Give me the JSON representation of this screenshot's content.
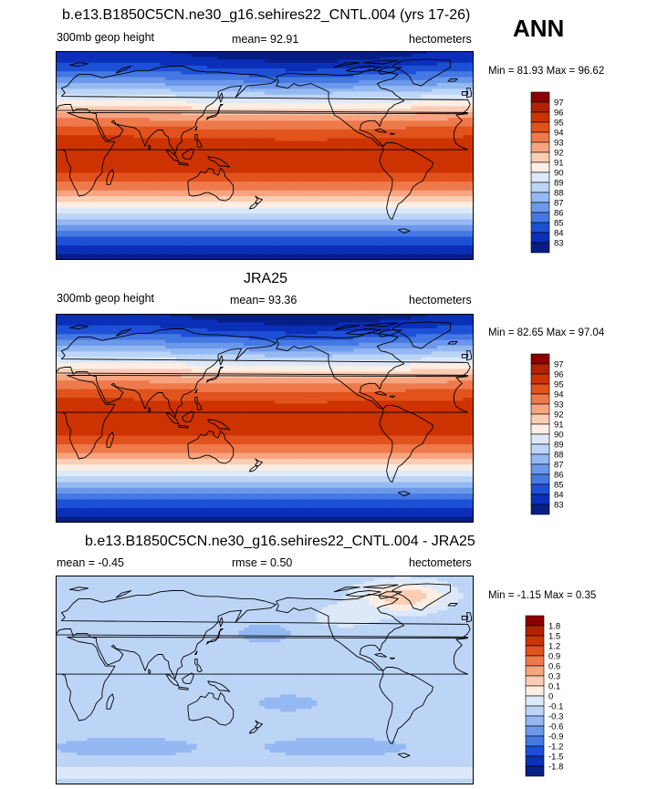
{
  "season": "ANN",
  "chart_data": [
    {
      "type": "heatmap",
      "title": "b.e13.B1850C5CN.ne30_g16.sehires22_CNTL.004 (yrs 17-26)",
      "variable": "300mb geop height",
      "units": "hectometers",
      "mean_text": "mean=  92.91",
      "minmax_text": "Min =  81.93 Max =  96.62",
      "min": 81.93,
      "max": 96.62,
      "mean": 92.91,
      "levels": [
        "97",
        "96",
        "95",
        "94",
        "93",
        "92",
        "91",
        "90",
        "89",
        "88",
        "87",
        "86",
        "85",
        "84",
        "83"
      ],
      "colors": [
        "#8c0000",
        "#b22200",
        "#cd3300",
        "#e2521c",
        "#ee7a4c",
        "#f7a481",
        "#fbcdb4",
        "#fdeee4",
        "#dde9f8",
        "#bcd5f7",
        "#94b8f2",
        "#6c98ea",
        "#4578e3",
        "#1d50d6",
        "#0a2fb8",
        "#061e85"
      ],
      "fields": {
        "heat_patch": false,
        "arctic_anom": false
      }
    },
    {
      "type": "heatmap",
      "title": "JRA25",
      "variable": "300mb geop height",
      "units": "hectometers",
      "mean_text": "mean=  93.36",
      "minmax_text": "Min =  82.65 Max =  97.04",
      "min": 82.65,
      "max": 97.04,
      "mean": 93.36,
      "levels": [
        "97",
        "96",
        "95",
        "94",
        "93",
        "92",
        "91",
        "90",
        "89",
        "88",
        "87",
        "86",
        "85",
        "84",
        "83"
      ],
      "colors": [
        "#8c0000",
        "#b22200",
        "#cd3300",
        "#e2521c",
        "#ee7a4c",
        "#f7a481",
        "#fbcdb4",
        "#fdeee4",
        "#dde9f8",
        "#bcd5f7",
        "#94b8f2",
        "#6c98ea",
        "#4578e3",
        "#1d50d6",
        "#0a2fb8",
        "#061e85"
      ],
      "fields": {
        "heat_patch": true,
        "arctic_anom": false
      }
    },
    {
      "type": "heatmap",
      "title": "b.e13.B1850C5CN.ne30_g16.sehires22_CNTL.004 - JRA25",
      "variable": "",
      "units": "hectometers",
      "mean_text": "mean =  -0.45",
      "rmse_text": "rmse =   0.50",
      "minmax_text": "Min =  -1.15 Max =   0.35",
      "min": -1.15,
      "max": 0.35,
      "mean": -0.45,
      "rmse": 0.5,
      "levels": [
        "1.8",
        "1.5",
        "1.2",
        "0.9",
        "0.6",
        "0.3",
        "0.1",
        "0",
        "-0.1",
        "-0.3",
        "-0.6",
        "-0.9",
        "-1.2",
        "-1.5",
        "-1.8"
      ],
      "colors": [
        "#8c0000",
        "#b22200",
        "#cd3300",
        "#e2521c",
        "#ee7a4c",
        "#f7a481",
        "#fbcdb4",
        "#fdeee4",
        "#dde9f8",
        "#bcd5f7",
        "#94b8f2",
        "#6c98ea",
        "#4578e3",
        "#1d50d6",
        "#0a2fb8",
        "#061e85"
      ],
      "fields": {
        "heat_patch": false,
        "arctic_anom": true
      }
    }
  ]
}
